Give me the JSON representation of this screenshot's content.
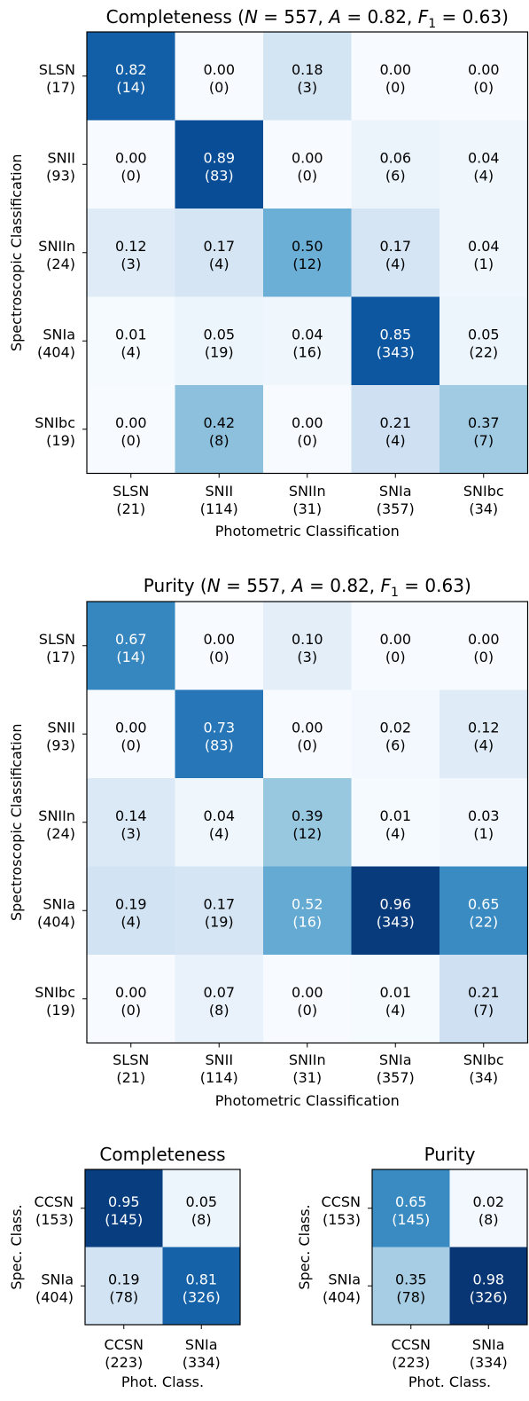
{
  "colors": {
    "cmap": "Blues",
    "light_text": "#ffffff",
    "dark_text": "#000000"
  },
  "chart_data": [
    {
      "type": "heatmap",
      "title_text": "Completeness (",
      "title_stats": "N = 557, A = 0.82, F",
      "title_sub": "1",
      "title_tail": " = 0.63)",
      "ylabel": "Spectroscopic Classification",
      "xlabel": "Photometric Classification",
      "rows": [
        [
          "SLSN",
          "(17)"
        ],
        [
          "SNII",
          "(93)"
        ],
        [
          "SNIIn",
          "(24)"
        ],
        [
          "SNIa",
          "(404)"
        ],
        [
          "SNIbc",
          "(19)"
        ]
      ],
      "cols": [
        [
          "SLSN",
          "(21)"
        ],
        [
          "SNII",
          "(114)"
        ],
        [
          "SNIIn",
          "(31)"
        ],
        [
          "SNIa",
          "(357)"
        ],
        [
          "SNIbc",
          "(34)"
        ]
      ],
      "values": [
        [
          0.82,
          0.0,
          0.18,
          0.0,
          0.0
        ],
        [
          0.0,
          0.89,
          0.0,
          0.06,
          0.04
        ],
        [
          0.12,
          0.17,
          0.5,
          0.17,
          0.04
        ],
        [
          0.01,
          0.05,
          0.04,
          0.85,
          0.05
        ],
        [
          0.0,
          0.42,
          0.0,
          0.21,
          0.37
        ]
      ],
      "value_labels": [
        [
          "0.82",
          "0.00",
          "0.18",
          "0.00",
          "0.00"
        ],
        [
          "0.00",
          "0.89",
          "0.00",
          "0.06",
          "0.04"
        ],
        [
          "0.12",
          "0.17",
          "0.50",
          "0.17",
          "0.04"
        ],
        [
          "0.01",
          "0.05",
          "0.04",
          "0.85",
          "0.05"
        ],
        [
          "0.00",
          "0.42",
          "0.00",
          "0.21",
          "0.37"
        ]
      ],
      "counts": [
        [
          "(14)",
          "(0)",
          "(3)",
          "(0)",
          "(0)"
        ],
        [
          "(0)",
          "(83)",
          "(0)",
          "(6)",
          "(4)"
        ],
        [
          "(3)",
          "(4)",
          "(12)",
          "(4)",
          "(1)"
        ],
        [
          "(4)",
          "(19)",
          "(16)",
          "(343)",
          "(22)"
        ],
        [
          "(0)",
          "(8)",
          "(0)",
          "(4)",
          "(7)"
        ]
      ]
    },
    {
      "type": "heatmap",
      "title_text": "Purity (",
      "title_stats": "N = 557, A = 0.82, F",
      "title_sub": "1",
      "title_tail": " = 0.63)",
      "ylabel": "Spectroscopic Classification",
      "xlabel": "Photometric Classification",
      "rows": [
        [
          "SLSN",
          "(17)"
        ],
        [
          "SNII",
          "(93)"
        ],
        [
          "SNIIn",
          "(24)"
        ],
        [
          "SNIa",
          "(404)"
        ],
        [
          "SNIbc",
          "(19)"
        ]
      ],
      "cols": [
        [
          "SLSN",
          "(21)"
        ],
        [
          "SNII",
          "(114)"
        ],
        [
          "SNIIn",
          "(31)"
        ],
        [
          "SNIa",
          "(357)"
        ],
        [
          "SNIbc",
          "(34)"
        ]
      ],
      "values": [
        [
          0.67,
          0.0,
          0.1,
          0.0,
          0.0
        ],
        [
          0.0,
          0.73,
          0.0,
          0.02,
          0.12
        ],
        [
          0.14,
          0.04,
          0.39,
          0.01,
          0.03
        ],
        [
          0.19,
          0.17,
          0.52,
          0.96,
          0.65
        ],
        [
          0.0,
          0.07,
          0.0,
          0.01,
          0.21
        ]
      ],
      "value_labels": [
        [
          "0.67",
          "0.00",
          "0.10",
          "0.00",
          "0.00"
        ],
        [
          "0.00",
          "0.73",
          "0.00",
          "0.02",
          "0.12"
        ],
        [
          "0.14",
          "0.04",
          "0.39",
          "0.01",
          "0.03"
        ],
        [
          "0.19",
          "0.17",
          "0.52",
          "0.96",
          "0.65"
        ],
        [
          "0.00",
          "0.07",
          "0.00",
          "0.01",
          "0.21"
        ]
      ],
      "counts": [
        [
          "(14)",
          "(0)",
          "(3)",
          "(0)",
          "(0)"
        ],
        [
          "(0)",
          "(83)",
          "(0)",
          "(6)",
          "(4)"
        ],
        [
          "(3)",
          "(4)",
          "(12)",
          "(4)",
          "(1)"
        ],
        [
          "(4)",
          "(19)",
          "(16)",
          "(343)",
          "(22)"
        ],
        [
          "(0)",
          "(8)",
          "(0)",
          "(4)",
          "(7)"
        ]
      ]
    },
    {
      "type": "heatmap",
      "title_text": "Completeness",
      "ylabel": "Spec. Class.",
      "xlabel": "Phot. Class.",
      "rows": [
        [
          "CCSN",
          "(153)"
        ],
        [
          "SNIa",
          "(404)"
        ]
      ],
      "cols": [
        [
          "CCSN",
          "(223)"
        ],
        [
          "SNIa",
          "(334)"
        ]
      ],
      "values": [
        [
          0.95,
          0.05
        ],
        [
          0.19,
          0.81
        ]
      ],
      "value_labels": [
        [
          "0.95",
          "0.05"
        ],
        [
          "0.19",
          "0.81"
        ]
      ],
      "counts": [
        [
          "(145)",
          "(8)"
        ],
        [
          "(78)",
          "(326)"
        ]
      ]
    },
    {
      "type": "heatmap",
      "title_text": "Purity",
      "ylabel": "Spec. Class.",
      "xlabel": "Phot. Class.",
      "rows": [
        [
          "CCSN",
          "(153)"
        ],
        [
          "SNIa",
          "(404)"
        ]
      ],
      "cols": [
        [
          "CCSN",
          "(223)"
        ],
        [
          "SNIa",
          "(334)"
        ]
      ],
      "values": [
        [
          0.65,
          0.02
        ],
        [
          0.35,
          0.98
        ]
      ],
      "value_labels": [
        [
          "0.65",
          "0.02"
        ],
        [
          "0.35",
          "0.98"
        ]
      ],
      "counts": [
        [
          "(145)",
          "(8)"
        ],
        [
          "(78)",
          "(326)"
        ]
      ]
    }
  ]
}
